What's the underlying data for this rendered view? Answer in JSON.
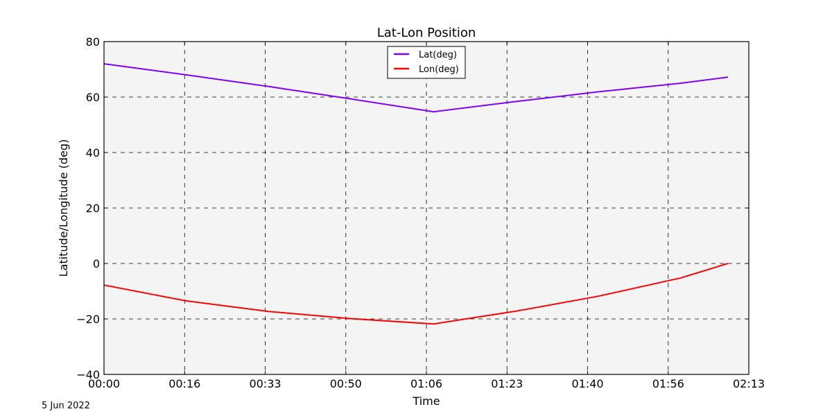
{
  "chart_data": {
    "type": "line",
    "title": "Lat-Lon Position",
    "xlabel": "Time",
    "ylabel": "Latitude/Longitude (deg)",
    "ylim": [
      -40,
      80
    ],
    "xlim_minutes": [
      0,
      133
    ],
    "yticks": [
      -40,
      -20,
      0,
      20,
      40,
      60,
      80
    ],
    "xticks": [
      "00:00",
      "00:16",
      "00:33",
      "00:50",
      "01:06",
      "01:23",
      "01:40",
      "01:56",
      "02:13"
    ],
    "grid": true,
    "legend_position": "upper center",
    "series": [
      {
        "name": "Lat(deg)",
        "color": "#7f00ff",
        "x_minutes": [
          0,
          17,
          34,
          51,
          68,
          85,
          102,
          119,
          128.7
        ],
        "values": [
          72.0,
          68.0,
          63.8,
          59.3,
          54.7,
          58.4,
          61.9,
          65.0,
          67.2
        ]
      },
      {
        "name": "Lon(deg)",
        "color": "#ff0000",
        "x_minutes": [
          0,
          17,
          34,
          51,
          68,
          85,
          102,
          119,
          128.7
        ],
        "values": [
          -7.8,
          -13.5,
          -17.3,
          -19.9,
          -21.8,
          -17.2,
          -11.8,
          -5.2,
          0.0
        ]
      }
    ],
    "footnote": "5 Jun 2022"
  },
  "labels": {
    "title": "Lat-Lon Position",
    "xlabel": "Time",
    "ylabel": "Latitude/Longitude (deg)",
    "date": "5 Jun 2022",
    "legend": [
      "Lat(deg)",
      "Lon(deg)"
    ]
  },
  "colors": {
    "plot_bg": "#f4f4f4",
    "lat": "#7f00ff",
    "lon": "#ff0000",
    "grid": "#000000"
  }
}
